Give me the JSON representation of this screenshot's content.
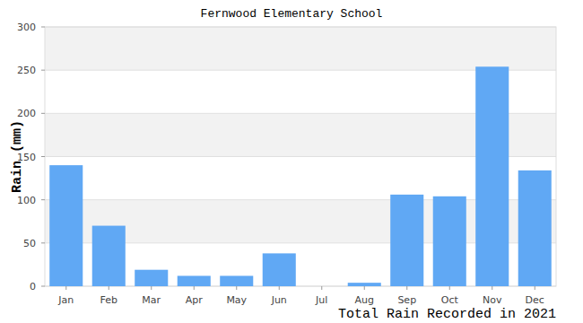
{
  "chart_data": {
    "type": "bar",
    "title": "Fernwood Elementary School",
    "y_label": "Rain (mm)",
    "x_label": "Total Rain Recorded in 2021",
    "categories": [
      "Jan",
      "Feb",
      "Mar",
      "Apr",
      "May",
      "Jun",
      "Jul",
      "Aug",
      "Sep",
      "Oct",
      "Nov",
      "Dec"
    ],
    "values": [
      140,
      70,
      19,
      12,
      12,
      38,
      0,
      4,
      106,
      104,
      254,
      134
    ],
    "color": "#60a8f4",
    "ylim": [
      0,
      300
    ],
    "yticks": [
      0,
      50,
      100,
      150,
      200,
      250,
      300
    ],
    "grid": true
  }
}
